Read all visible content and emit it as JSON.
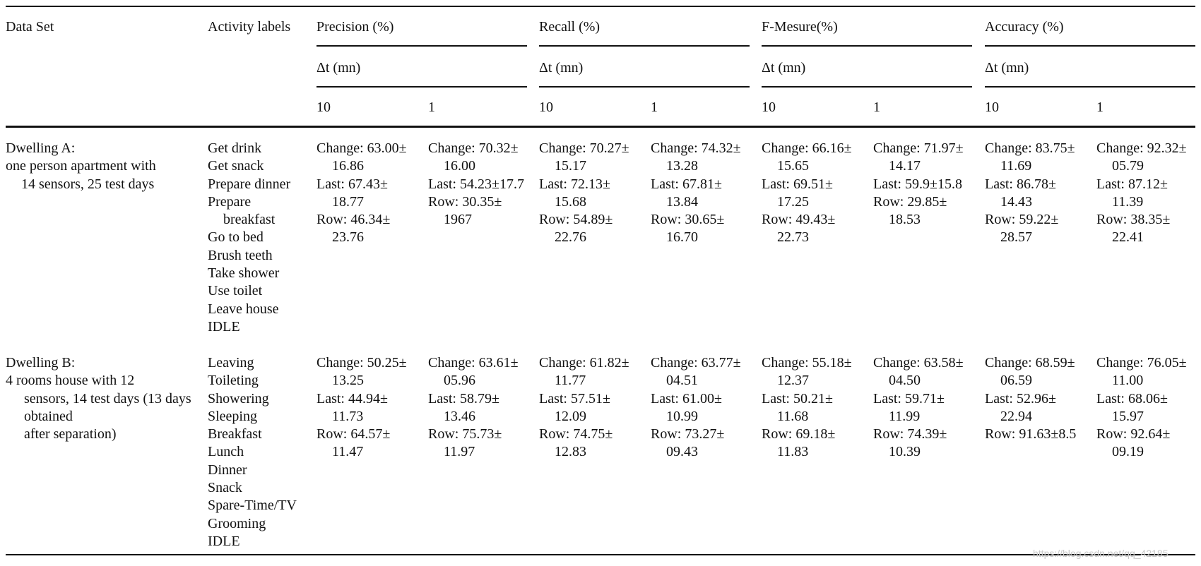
{
  "header": {
    "data_set": "Data Set",
    "activity_labels": "Activity labels",
    "precision": "Precision (%)",
    "recall": "Recall (%)",
    "fmeasure": "F-Mesure(%)",
    "accuracy": "Accuracy (%)",
    "dt": "Δt (mn)",
    "ten": "10",
    "one": "1"
  },
  "rows": [
    {
      "dataset": [
        "Dwelling A:",
        "one person apartment with",
        "14 sensors, 25 test days"
      ],
      "activities": [
        "Get drink",
        "Get snack",
        "Prepare dinner",
        "Prepare",
        "breakfast",
        "Go to bed",
        "Brush teeth",
        "Take shower",
        "Use toilet",
        "Leave house",
        "IDLE"
      ],
      "cells": [
        [
          "Change: 63.00±",
          "16.86",
          "Last: 67.43±",
          "18.77",
          "Row: 46.34±",
          "23.76"
        ],
        [
          "Change: 70.32±",
          "16.00",
          "Last: 54.23±17.7",
          "Row: 30.35±",
          "1967"
        ],
        [
          "Change: 70.27±",
          "15.17",
          "Last: 72.13±",
          "15.68",
          "Row: 54.89±",
          "22.76"
        ],
        [
          "Change: 74.32±",
          "13.28",
          "Last: 67.81±",
          "13.84",
          "Row: 30.65±",
          "16.70"
        ],
        [
          "Change: 66.16±",
          "15.65",
          "Last: 69.51±",
          "17.25",
          "Row: 49.43±",
          "22.73"
        ],
        [
          "Change: 71.97±",
          "14.17",
          "Last: 59.9±15.8",
          "Row: 29.85±",
          "18.53"
        ],
        [
          "Change: 83.75±",
          "11.69",
          "Last: 86.78±",
          "14.43",
          "Row: 59.22±",
          "28.57"
        ],
        [
          "Change: 92.32±",
          "05.79",
          "Last: 87.12±",
          "11.39",
          "Row: 38.35±",
          "22.41"
        ]
      ]
    },
    {
      "dataset": [
        "Dwelling B:",
        "4 rooms house with 12",
        "sensors, 14 test days (13 days",
        "obtained",
        "after separation)"
      ],
      "activities": [
        "Leaving",
        "Toileting",
        "Showering",
        "Sleeping",
        "Breakfast",
        "Lunch",
        "Dinner",
        "Snack",
        "Spare-Time/TV",
        "Grooming",
        "IDLE"
      ],
      "cells": [
        [
          "Change: 50.25±",
          "13.25",
          "Last: 44.94±",
          "11.73",
          "Row: 64.57±",
          "11.47"
        ],
        [
          "Change: 63.61±",
          "05.96",
          "Last: 58.79±",
          "13.46",
          "Row: 75.73±",
          "11.97"
        ],
        [
          "Change: 61.82±",
          "11.77",
          "Last: 57.51±",
          "12.09",
          "Row: 74.75±",
          "12.83"
        ],
        [
          "Change: 63.77±",
          "04.51",
          "Last: 61.00±",
          "10.99",
          "Row: 73.27±",
          "09.43"
        ],
        [
          "Change: 55.18±",
          "12.37",
          "Last: 50.21±",
          "11.68",
          "Row: 69.18±",
          "11.83"
        ],
        [
          "Change: 63.58±",
          "04.50",
          "Last: 59.71±",
          "11.99",
          "Row: 74.39±",
          "10.39"
        ],
        [
          "Change: 68.59±",
          "06.59",
          "Last: 52.96±",
          "22.94",
          "Row: 91.63±8.5"
        ],
        [
          "Change: 76.05±",
          "11.00",
          "Last: 68.06±",
          "15.97",
          "Row: 92.64±",
          "09.19"
        ]
      ]
    }
  ],
  "watermark": "https://blog.csdn.net/qq_42185"
}
